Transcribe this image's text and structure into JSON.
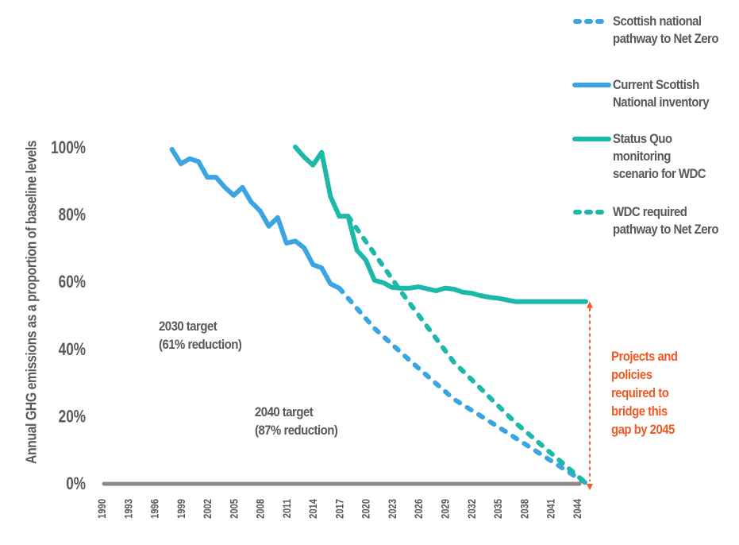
{
  "chart_data": {
    "type": "line",
    "title": "",
    "xlabel": "",
    "ylabel": "Annual GHG emissions as a proportion of baseline levels",
    "xlim": [
      1990,
      2045
    ],
    "ylim": [
      0,
      100
    ],
    "y_ticks": [
      "0%",
      "20%",
      "40%",
      "60%",
      "80%",
      "100%"
    ],
    "y_tick_values": [
      0,
      20,
      40,
      60,
      80,
      100
    ],
    "x_ticks": [
      "1990",
      "1993",
      "1996",
      "1999",
      "2002",
      "2005",
      "2008",
      "2011",
      "2014",
      "2017",
      "2020",
      "2023",
      "2026",
      "2029",
      "2032",
      "2035",
      "2038",
      "2041",
      "2044"
    ],
    "grid": false,
    "legend_position": "top-right",
    "series": [
      {
        "name": "Scottish national pathway to Net Zero",
        "style": "dotted",
        "color": "#3aa5e0",
        "x": [
          2017,
          2021,
          2025,
          2030,
          2035,
          2045
        ],
        "y": [
          58,
          46,
          36.5,
          25,
          16.8,
          0
        ]
      },
      {
        "name": "Current Scottish National inventory",
        "style": "solid",
        "color": "#3aa5e0",
        "x": [
          1998,
          1999,
          2000,
          2001,
          2002,
          2003,
          2004,
          2005,
          2006,
          2007,
          2008,
          2009,
          2010,
          2011,
          2012,
          2013,
          2014,
          2015,
          2016,
          2017
        ],
        "y": [
          99.3,
          95,
          96.5,
          95.7,
          91,
          91,
          88,
          85.6,
          88,
          83.6,
          81,
          76.4,
          79,
          71.4,
          72,
          70,
          65,
          64,
          59.3,
          58
        ]
      },
      {
        "name": "Status Quo monitoring scenario for WDC",
        "style": "solid",
        "color": "#1cb8a8",
        "x": [
          2012,
          2013,
          2014,
          2015,
          2016,
          2017,
          2018,
          2019,
          2020,
          2021,
          2022,
          2023,
          2024,
          2025,
          2026,
          2027,
          2028,
          2029,
          2030,
          2031,
          2032,
          2033,
          2034,
          2035,
          2036,
          2037,
          2040,
          2045
        ],
        "y": [
          100,
          97,
          94.6,
          98.4,
          85.3,
          79.4,
          79.4,
          69.3,
          66.4,
          60.3,
          59.6,
          58.2,
          58,
          58,
          58.4,
          57.8,
          57.2,
          58,
          57.7,
          56.8,
          56.5,
          55.8,
          55.3,
          55,
          54.5,
          54,
          54,
          54
        ]
      },
      {
        "name": "WDC required pathway to Net Zero",
        "style": "dotted",
        "color": "#1cb8a8",
        "x": [
          2018,
          2024,
          2030,
          2037,
          2045
        ],
        "y": [
          79.4,
          57,
          36,
          18,
          0
        ]
      }
    ],
    "annotations": [
      {
        "text_line1": "2030 target",
        "text_line2": "(61% reduction)"
      },
      {
        "text_line1": "2040 target",
        "text_line2": "(87% reduction)"
      },
      {
        "text": "Projects and\npolicies\nrequired to\nbridge this\ngap by 2045",
        "color": "#f15a24"
      }
    ],
    "gap_arrow": {
      "year": 2045,
      "from": 0,
      "to": 54,
      "color": "#f15a24"
    }
  },
  "colors": {
    "blue": "#3aa5e0",
    "teal": "#1cb8a8",
    "axis": "#8a8a8a",
    "text": "#58595b",
    "accent": "#f15a24"
  }
}
